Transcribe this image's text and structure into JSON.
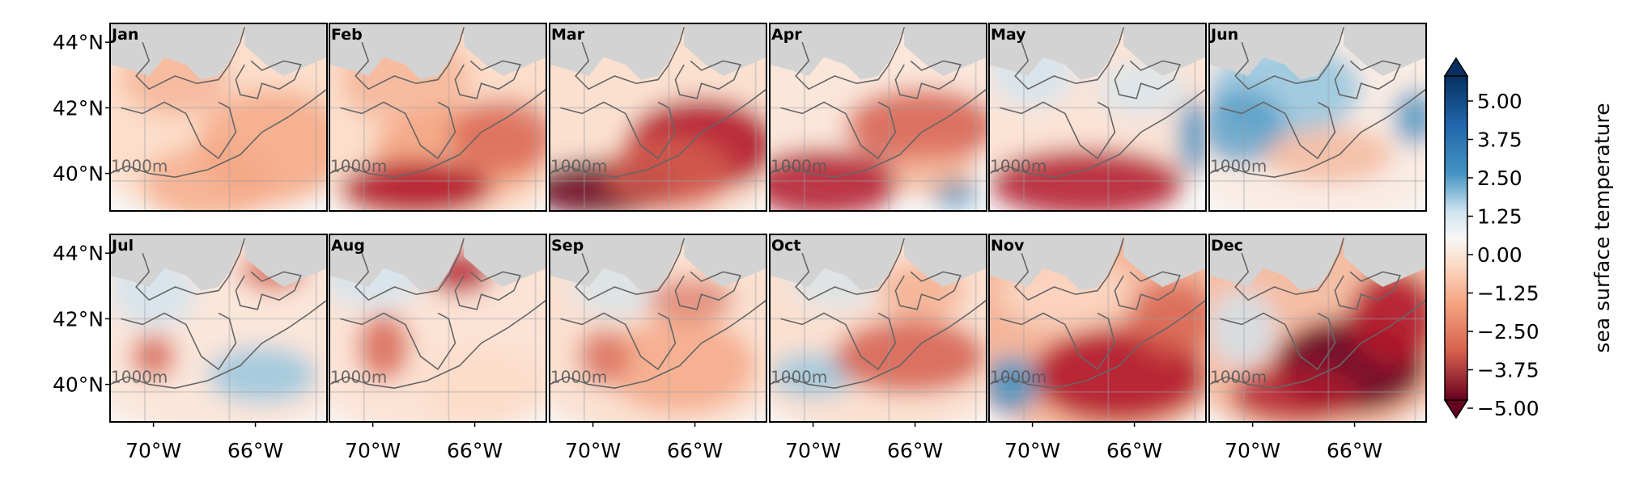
{
  "figure": {
    "months_row1": [
      "Jan",
      "Feb",
      "Mar",
      "Apr",
      "May",
      "Jun"
    ],
    "months_row2": [
      "Jul",
      "Aug",
      "Sep",
      "Oct",
      "Nov",
      "Dec"
    ],
    "lat_labels": [
      "44°N",
      "42°N",
      "40°N"
    ],
    "lon_labels": [
      "70°W",
      "66°W"
    ],
    "isobath_label": "1000m",
    "land_color": "#d3d3d3",
    "contour_color": "#666666"
  },
  "colorbar": {
    "label": "sea surface temperature",
    "ticks": [
      "5.00",
      "3.75",
      "2.50",
      "1.25",
      "0.00",
      "−1.25",
      "−2.50",
      "−3.75",
      "−5.00"
    ],
    "colormap": "RdBu_r-like (blue positive, red negative)",
    "range": [
      -5.0,
      5.0
    ]
  }
}
